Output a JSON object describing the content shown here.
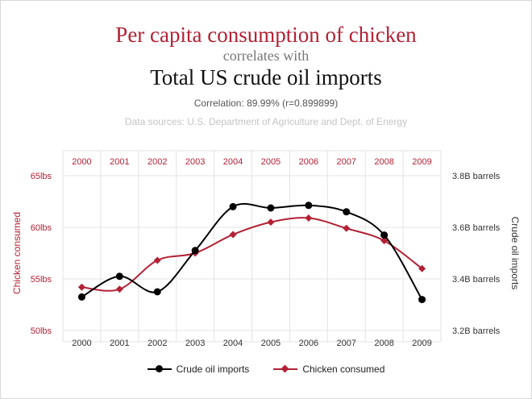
{
  "header": {
    "title_line1": "Per capita consumption of chicken",
    "title_line2": "correlates with",
    "title_line3": "Total US crude oil imports",
    "correlation": "Correlation: 89.99% (r=0.899899)",
    "sources": "Data sources: U.S. Department of Agriculture and Dept. of Energy"
  },
  "chart_data": {
    "type": "line",
    "x": [
      "2000",
      "2001",
      "2002",
      "2003",
      "2004",
      "2005",
      "2006",
      "2007",
      "2008",
      "2009"
    ],
    "series": [
      {
        "name": "Chicken consumed",
        "axis": "left",
        "color": "#b32134",
        "marker": "diamond",
        "values": [
          54.2,
          54.0,
          56.8,
          57.5,
          59.3,
          60.5,
          60.9,
          59.9,
          58.7,
          56.0
        ]
      },
      {
        "name": "Crude oil imports",
        "axis": "right",
        "color": "#000000",
        "marker": "circle",
        "values": [
          3.33,
          3.41,
          3.35,
          3.51,
          3.68,
          3.675,
          3.685,
          3.66,
          3.57,
          3.32
        ]
      }
    ],
    "left_axis": {
      "label": "Chicken consumed",
      "range": [
        50,
        65
      ],
      "ticks": [
        50,
        55,
        60,
        65
      ],
      "tick_labels": [
        "50lbs",
        "55lbs",
        "60lbs",
        "65lbs"
      ]
    },
    "right_axis": {
      "label": "Crude oil imports",
      "range": [
        3.2,
        3.8
      ],
      "ticks": [
        3.2,
        3.4,
        3.6,
        3.8
      ],
      "tick_labels": [
        "3.2B barrels",
        "3.4B barrels",
        "3.6B barrels",
        "3.8B barrels"
      ]
    },
    "legend": {
      "position": "bottom",
      "items": [
        {
          "label": "Crude oil imports",
          "color": "#000000",
          "marker": "circle"
        },
        {
          "label": "Chicken consumed",
          "color": "#b32134",
          "marker": "diamond"
        }
      ]
    },
    "grid": true
  }
}
